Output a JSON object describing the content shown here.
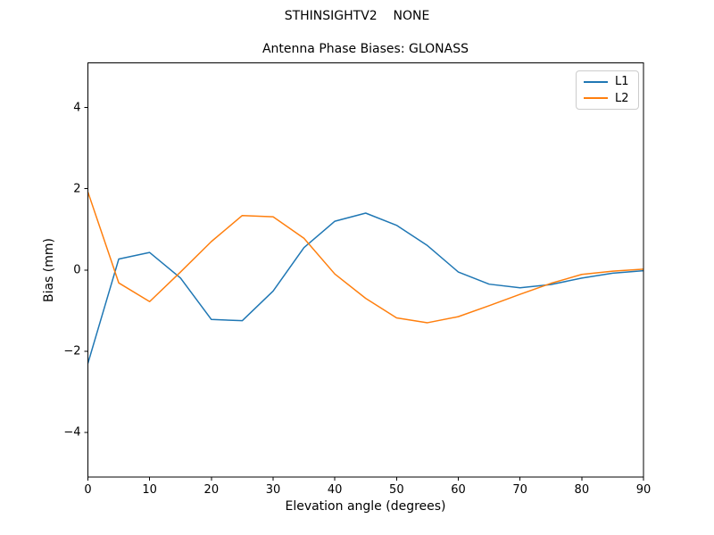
{
  "figure": {
    "suptitle": "STHINSIGHTV2    NONE"
  },
  "chart_data": {
    "type": "line",
    "title": "Antenna Phase Biases: GLONASS",
    "suptitle": "STHINSIGHTV2    NONE",
    "xlabel": "Elevation angle (degrees)",
    "ylabel": "Bias (mm)",
    "xlim": [
      0,
      90
    ],
    "ylim": [
      -5.1,
      5.1
    ],
    "x_ticks": [
      0,
      10,
      20,
      30,
      40,
      50,
      60,
      70,
      80,
      90
    ],
    "y_ticks": [
      -4,
      -2,
      0,
      2,
      4
    ],
    "grid": false,
    "legend": {
      "position": "upper right",
      "entries": [
        "L1",
        "L2"
      ]
    },
    "x": [
      0,
      5,
      10,
      15,
      20,
      25,
      30,
      35,
      40,
      45,
      50,
      55,
      60,
      65,
      70,
      75,
      80,
      85,
      90
    ],
    "series": [
      {
        "name": "L1",
        "color": "#1f77b4",
        "values": [
          -2.3,
          0.27,
          0.43,
          -0.2,
          -1.22,
          -1.25,
          -0.52,
          0.55,
          1.2,
          1.4,
          1.1,
          0.6,
          -0.05,
          -0.35,
          -0.44,
          -0.36,
          -0.2,
          -0.08,
          -0.02
        ]
      },
      {
        "name": "L2",
        "color": "#ff7f0e",
        "values": [
          1.92,
          -0.32,
          -0.78,
          -0.05,
          0.7,
          1.34,
          1.31,
          0.78,
          -0.1,
          -0.7,
          -1.18,
          -1.3,
          -1.15,
          -0.88,
          -0.6,
          -0.33,
          -0.11,
          -0.03,
          0.02
        ]
      }
    ]
  }
}
